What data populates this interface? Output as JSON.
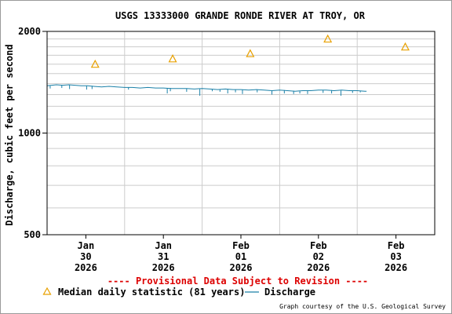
{
  "chart_data": {
    "type": "line",
    "title": "USGS 13333000 GRANDE RONDE RIVER AT TROY, OR",
    "ylabel": "Discharge, cubic feet per second",
    "xlabel": "",
    "y_scale": "log",
    "ylim": [
      500,
      2000
    ],
    "y_ticks": [
      {
        "value": 500,
        "label": "500"
      },
      {
        "value": 1000,
        "label": "1000"
      },
      {
        "value": 2000,
        "label": "2000"
      }
    ],
    "xlim_days": [
      -0.5,
      4.5
    ],
    "x_ticks": [
      {
        "day": 0,
        "lines": [
          "Jan",
          "30",
          "2026"
        ]
      },
      {
        "day": 1,
        "lines": [
          "Jan",
          "31",
          "2026"
        ]
      },
      {
        "day": 2,
        "lines": [
          "Feb",
          "01",
          "2026"
        ]
      },
      {
        "day": 3,
        "lines": [
          "Feb",
          "02",
          "2026"
        ]
      },
      {
        "day": 4,
        "lines": [
          "Feb",
          "03",
          "2026"
        ]
      }
    ],
    "grid": true,
    "legend_position": "bottom",
    "series": [
      {
        "name": "Median daily statistic (81 years)",
        "kind": "marker",
        "color": "#e8a000",
        "points": [
          {
            "day": 0.12,
            "value": 1600
          },
          {
            "day": 1.12,
            "value": 1660
          },
          {
            "day": 2.12,
            "value": 1720
          },
          {
            "day": 3.12,
            "value": 1900
          },
          {
            "day": 4.12,
            "value": 1800
          }
        ]
      },
      {
        "name": "Discharge",
        "kind": "line",
        "color": "#1a80a8",
        "points": [
          {
            "day": -0.5,
            "value": 1380
          },
          {
            "day": -0.44,
            "value": 1385
          },
          {
            "day": -0.38,
            "value": 1390
          },
          {
            "day": -0.3,
            "value": 1385
          },
          {
            "day": -0.22,
            "value": 1390
          },
          {
            "day": -0.14,
            "value": 1385
          },
          {
            "day": -0.06,
            "value": 1380
          },
          {
            "day": 0.02,
            "value": 1380
          },
          {
            "day": 0.1,
            "value": 1375
          },
          {
            "day": 0.2,
            "value": 1370
          },
          {
            "day": 0.3,
            "value": 1375
          },
          {
            "day": 0.4,
            "value": 1370
          },
          {
            "day": 0.5,
            "value": 1365
          },
          {
            "day": 0.6,
            "value": 1365
          },
          {
            "day": 0.7,
            "value": 1360
          },
          {
            "day": 0.8,
            "value": 1365
          },
          {
            "day": 0.9,
            "value": 1360
          },
          {
            "day": 1.0,
            "value": 1360
          },
          {
            "day": 1.1,
            "value": 1355
          },
          {
            "day": 1.2,
            "value": 1355
          },
          {
            "day": 1.3,
            "value": 1355
          },
          {
            "day": 1.4,
            "value": 1350
          },
          {
            "day": 1.5,
            "value": 1355
          },
          {
            "day": 1.6,
            "value": 1350
          },
          {
            "day": 1.7,
            "value": 1345
          },
          {
            "day": 1.8,
            "value": 1350
          },
          {
            "day": 1.9,
            "value": 1345
          },
          {
            "day": 2.0,
            "value": 1345
          },
          {
            "day": 2.1,
            "value": 1340
          },
          {
            "day": 2.2,
            "value": 1345
          },
          {
            "day": 2.3,
            "value": 1340
          },
          {
            "day": 2.4,
            "value": 1335
          },
          {
            "day": 2.5,
            "value": 1340
          },
          {
            "day": 2.6,
            "value": 1335
          },
          {
            "day": 2.7,
            "value": 1330
          },
          {
            "day": 2.8,
            "value": 1335
          },
          {
            "day": 2.9,
            "value": 1335
          },
          {
            "day": 3.0,
            "value": 1340
          },
          {
            "day": 3.1,
            "value": 1340
          },
          {
            "day": 3.2,
            "value": 1335
          },
          {
            "day": 3.3,
            "value": 1340
          },
          {
            "day": 3.4,
            "value": 1335
          },
          {
            "day": 3.5,
            "value": 1335
          },
          {
            "day": 3.6,
            "value": 1330
          },
          {
            "day": 3.62,
            "value": 1330
          }
        ],
        "dips": [
          {
            "day": -0.46,
            "value": 1355
          },
          {
            "day": -0.31,
            "value": 1360
          },
          {
            "day": -0.21,
            "value": 1350
          },
          {
            "day": 0.01,
            "value": 1345
          },
          {
            "day": 0.08,
            "value": 1350
          },
          {
            "day": 0.55,
            "value": 1345
          },
          {
            "day": 1.05,
            "value": 1310
          },
          {
            "day": 1.09,
            "value": 1330
          },
          {
            "day": 1.3,
            "value": 1325
          },
          {
            "day": 1.47,
            "value": 1290
          },
          {
            "day": 1.63,
            "value": 1330
          },
          {
            "day": 1.73,
            "value": 1325
          },
          {
            "day": 1.83,
            "value": 1310
          },
          {
            "day": 1.93,
            "value": 1320
          },
          {
            "day": 2.02,
            "value": 1305
          },
          {
            "day": 2.21,
            "value": 1320
          },
          {
            "day": 2.4,
            "value": 1300
          },
          {
            "day": 2.56,
            "value": 1310
          },
          {
            "day": 2.68,
            "value": 1305
          },
          {
            "day": 2.76,
            "value": 1310
          },
          {
            "day": 2.86,
            "value": 1305
          },
          {
            "day": 3.06,
            "value": 1315
          },
          {
            "day": 3.17,
            "value": 1310
          },
          {
            "day": 3.29,
            "value": 1290
          },
          {
            "day": 3.44,
            "value": 1315
          },
          {
            "day": 3.54,
            "value": 1320
          }
        ]
      }
    ]
  },
  "provisional_notice": "---- Provisional Data Subject to Revision ----",
  "legend": {
    "median_label": "Median daily statistic (81 years)",
    "discharge_label": "Discharge"
  },
  "credit": "Graph courtesy of the U.S. Geological Survey",
  "colors": {
    "notice": "#dd0000",
    "marker": "#e8a000",
    "line": "#1a80a8",
    "grid": "#cccccc",
    "axis": "#000000"
  }
}
